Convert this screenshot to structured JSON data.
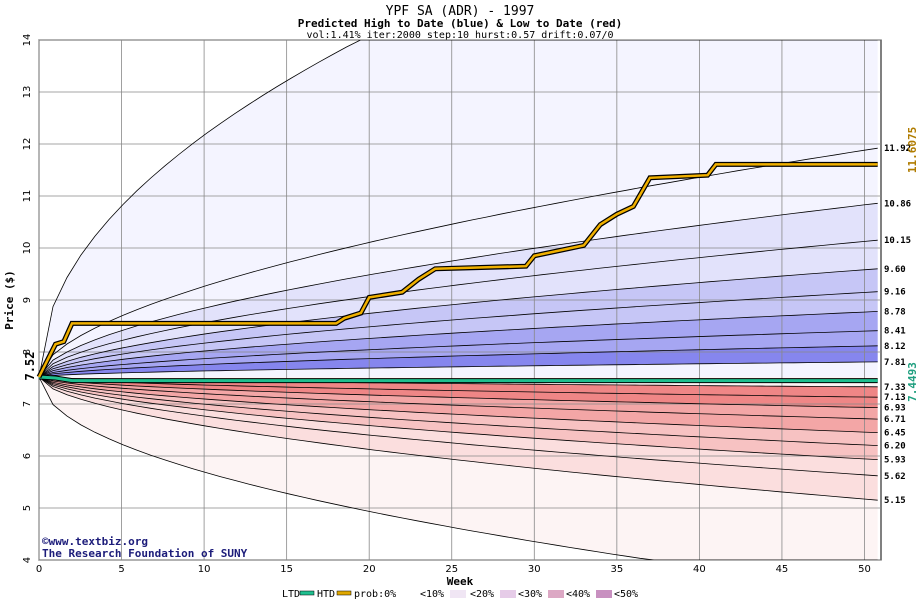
{
  "chart_data": {
    "type": "area",
    "title": "YPF SA (ADR) - 1997",
    "subtitle": "Predicted High to Date (blue) &  Low to Date (red)",
    "params": "vol:1.41% iter:2000 step:10 hurst:0.57 drift:0.07/0",
    "xlabel": "Week",
    "ylabel": "Price ($)",
    "xlim": [
      0,
      51
    ],
    "ylim": [
      4,
      14
    ],
    "xticks": [
      "0",
      "5",
      "10",
      "15",
      "20",
      "25",
      "30",
      "35",
      "40",
      "45",
      "50"
    ],
    "yticks": [
      "4",
      "5",
      "6",
      "7",
      "8",
      "9",
      "10",
      "11",
      "12",
      "13",
      "14"
    ],
    "grid": true,
    "start_price": 7.52,
    "start_label": "7.52",
    "high_end_labels": [
      "11.92",
      "10.86",
      "10.15",
      "9.60",
      "9.16",
      "8.78",
      "8.41",
      "8.12",
      "7.81"
    ],
    "low_end_labels": [
      "7.33",
      "7.13",
      "6.93",
      "6.71",
      "6.45",
      "6.20",
      "5.93",
      "5.62",
      "5.15"
    ],
    "high_quantiles": [
      11.92,
      10.86,
      10.15,
      9.6,
      9.16,
      8.78,
      8.41,
      8.12,
      7.81
    ],
    "low_quantiles": [
      7.33,
      7.13,
      6.93,
      6.71,
      6.45,
      6.2,
      5.93,
      5.62,
      5.15
    ],
    "band_probabilities": [
      "0%",
      "10%",
      "20%",
      "30%",
      "40%",
      "50%"
    ],
    "htd_series": {
      "name": "HTD",
      "color": "#c89a00",
      "end_value": 11.6075,
      "end_label": "11.6075",
      "x": [
        0,
        1,
        1.5,
        2,
        18,
        18.5,
        19.5,
        20,
        22,
        23,
        24,
        29.5,
        30,
        33,
        34,
        35,
        36,
        37,
        40.5,
        41,
        50.8
      ],
      "y": [
        7.52,
        8.15,
        8.2,
        8.55,
        8.55,
        8.65,
        8.75,
        9.05,
        9.15,
        9.4,
        9.6,
        9.65,
        9.85,
        10.05,
        10.45,
        10.65,
        10.8,
        11.35,
        11.4,
        11.6075,
        11.6075
      ]
    },
    "ltd_series": {
      "name": "LTD",
      "color": "#1fbf8f",
      "end_value": 7.4493,
      "end_label": "7.4493",
      "x": [
        0,
        1,
        2,
        50.8
      ],
      "y": [
        7.52,
        7.5,
        7.45,
        7.4493
      ]
    },
    "outer_high_end": 14,
    "outer_low_end": 4
  },
  "credits": {
    "line1": "©www.textbiz.org",
    "line2": "The Research Foundation of SUNY"
  },
  "legend": {
    "ltd": "LTD",
    "htd": "HTD",
    "prob": "prob:0%",
    "bands": [
      "<10%",
      "<20%",
      "<30%",
      "<40%",
      "<50%"
    ]
  },
  "colors": {
    "blue_bands": [
      "#f4f4ff",
      "#e2e2fb",
      "#c6c6f6",
      "#a6a6f2",
      "#8686ee"
    ],
    "red_bands": [
      "#fdf4f4",
      "#fbdede",
      "#f7c2c2",
      "#f3a6a6",
      "#ef8686"
    ],
    "htd": "#c89a00",
    "ltd": "#1fbf8f"
  }
}
